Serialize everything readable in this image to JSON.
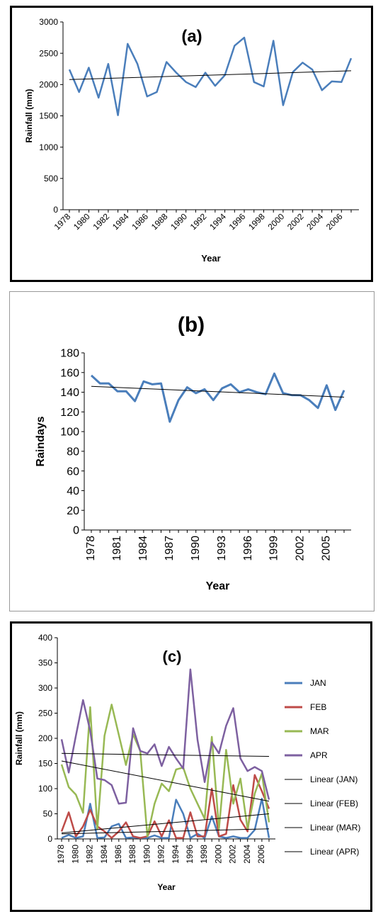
{
  "colors": {
    "series_blue": "#4a7ebb",
    "jan": "#4a7ebb",
    "feb": "#be4b48",
    "mar": "#98b954",
    "apr": "#7d60a0",
    "trend": "#000000"
  },
  "chart_data": [
    {
      "type": "line",
      "title": "(a)",
      "xlabel": "Year",
      "ylabel": "Rainfall (mm)",
      "ylim": [
        0,
        3000
      ],
      "yticks": [
        "0",
        "500",
        "1000",
        "1500",
        "2000",
        "2500",
        "3000"
      ],
      "xticks": [
        "1978",
        "1980",
        "1982",
        "1984",
        "1986",
        "1988",
        "1990",
        "1992",
        "1994",
        "1996",
        "1998",
        "2000",
        "2002",
        "2004",
        "2006"
      ],
      "x": [
        1978,
        1979,
        1980,
        1981,
        1982,
        1983,
        1984,
        1985,
        1986,
        1987,
        1988,
        1989,
        1990,
        1991,
        1992,
        1993,
        1994,
        1995,
        1996,
        1997,
        1998,
        1999,
        2000,
        2001,
        2002,
        2003,
        2004,
        2005,
        2006,
        2007
      ],
      "series": [
        {
          "values": [
            2240,
            1880,
            2270,
            1790,
            2330,
            1510,
            2650,
            2330,
            1810,
            1880,
            2360,
            2190,
            2040,
            1960,
            2190,
            1980,
            2150,
            2620,
            2750,
            2040,
            1970,
            2700,
            1670,
            2200,
            2350,
            2240,
            1910,
            2050,
            2040,
            2420
          ]
        }
      ],
      "trendline": [
        2080,
        2220
      ],
      "grid": false,
      "legend": "none"
    },
    {
      "type": "line",
      "title": "(b)",
      "xlabel": "Year",
      "ylabel": "Raindays",
      "ylim": [
        0,
        180
      ],
      "yticks": [
        "0",
        "20",
        "40",
        "60",
        "80",
        "100",
        "120",
        "140",
        "160",
        "180"
      ],
      "xticks": [
        "1978",
        "1981",
        "1984",
        "1987",
        "1990",
        "1993",
        "1996",
        "1999",
        "2002",
        "2005"
      ],
      "x": [
        1978,
        1979,
        1980,
        1981,
        1982,
        1983,
        1984,
        1985,
        1986,
        1987,
        1988,
        1989,
        1990,
        1991,
        1992,
        1993,
        1994,
        1995,
        1996,
        1997,
        1998,
        1999,
        2000,
        2001,
        2002,
        2003,
        2004,
        2005,
        2006,
        2007
      ],
      "series": [
        {
          "values": [
            157,
            149,
            149,
            141,
            141,
            131,
            151,
            148,
            149,
            110,
            132,
            145,
            139,
            143,
            132,
            144,
            148,
            140,
            143,
            140,
            138,
            159,
            139,
            137,
            137,
            132,
            124,
            147,
            122,
            142
          ]
        }
      ],
      "trendline": [
        146,
        135
      ],
      "grid": false,
      "legend": "none"
    },
    {
      "type": "line",
      "title": "(c)",
      "xlabel": "Year",
      "ylabel": "Rainfall (mm)",
      "ylim": [
        0,
        400
      ],
      "yticks": [
        "0",
        "50",
        "100",
        "150",
        "200",
        "250",
        "300",
        "350",
        "400"
      ],
      "xticks": [
        "1978",
        "1980",
        "1982",
        "1984",
        "1986",
        "1988",
        "1990",
        "1992",
        "1994",
        "1996",
        "1998",
        "2000",
        "2002",
        "2004",
        "2006"
      ],
      "x": [
        1978,
        1979,
        1980,
        1981,
        1982,
        1983,
        1984,
        1985,
        1986,
        1987,
        1988,
        1989,
        1990,
        1991,
        1992,
        1993,
        1994,
        1995,
        1996,
        1997,
        1998,
        1999,
        2000,
        2001,
        2002,
        2003,
        2004,
        2005,
        2006,
        2007
      ],
      "series": [
        {
          "name": "JAN",
          "values": [
            2,
            8,
            2,
            5,
            70,
            2,
            3,
            25,
            30,
            2,
            3,
            2,
            2,
            7,
            2,
            2,
            78,
            50,
            2,
            10,
            2,
            45,
            5,
            2,
            5,
            2,
            2,
            18,
            80,
            2
          ]
        },
        {
          "name": "FEB",
          "values": [
            15,
            53,
            5,
            25,
            58,
            25,
            15,
            2,
            15,
            33,
            5,
            2,
            5,
            35,
            5,
            37,
            2,
            2,
            53,
            5,
            5,
            100,
            5,
            10,
            107,
            38,
            15,
            127,
            95,
            60
          ]
        },
        {
          "name": "MAR",
          "values": [
            148,
            103,
            88,
            52,
            262,
            20,
            205,
            267,
            207,
            147,
            208,
            175,
            5,
            70,
            110,
            95,
            138,
            142,
            100,
            70,
            40,
            203,
            20,
            177,
            70,
            120,
            20,
            90,
            130,
            33
          ]
        },
        {
          "name": "APR",
          "values": [
            198,
            132,
            205,
            276,
            215,
            120,
            117,
            107,
            70,
            72,
            220,
            175,
            170,
            188,
            145,
            183,
            160,
            140,
            337,
            197,
            113,
            192,
            170,
            225,
            260,
            160,
            135,
            143,
            135,
            78
          ]
        }
      ],
      "trendlines": [
        {
          "name": "Linear (JAN)",
          "start": 10,
          "end": 20
        },
        {
          "name": "Linear (FEB)",
          "start": 12,
          "end": 50
        },
        {
          "name": "Linear (MAR)",
          "start": 155,
          "end": 75
        },
        {
          "name": "Linear (APR)",
          "start": 170,
          "end": 164
        }
      ],
      "legend_entries": [
        "JAN",
        "FEB",
        "MAR",
        "APR",
        "Linear (JAN)",
        "Linear (FEB)",
        "Linear (MAR)",
        "Linear (APR)"
      ],
      "legend": "right",
      "grid": false
    }
  ]
}
